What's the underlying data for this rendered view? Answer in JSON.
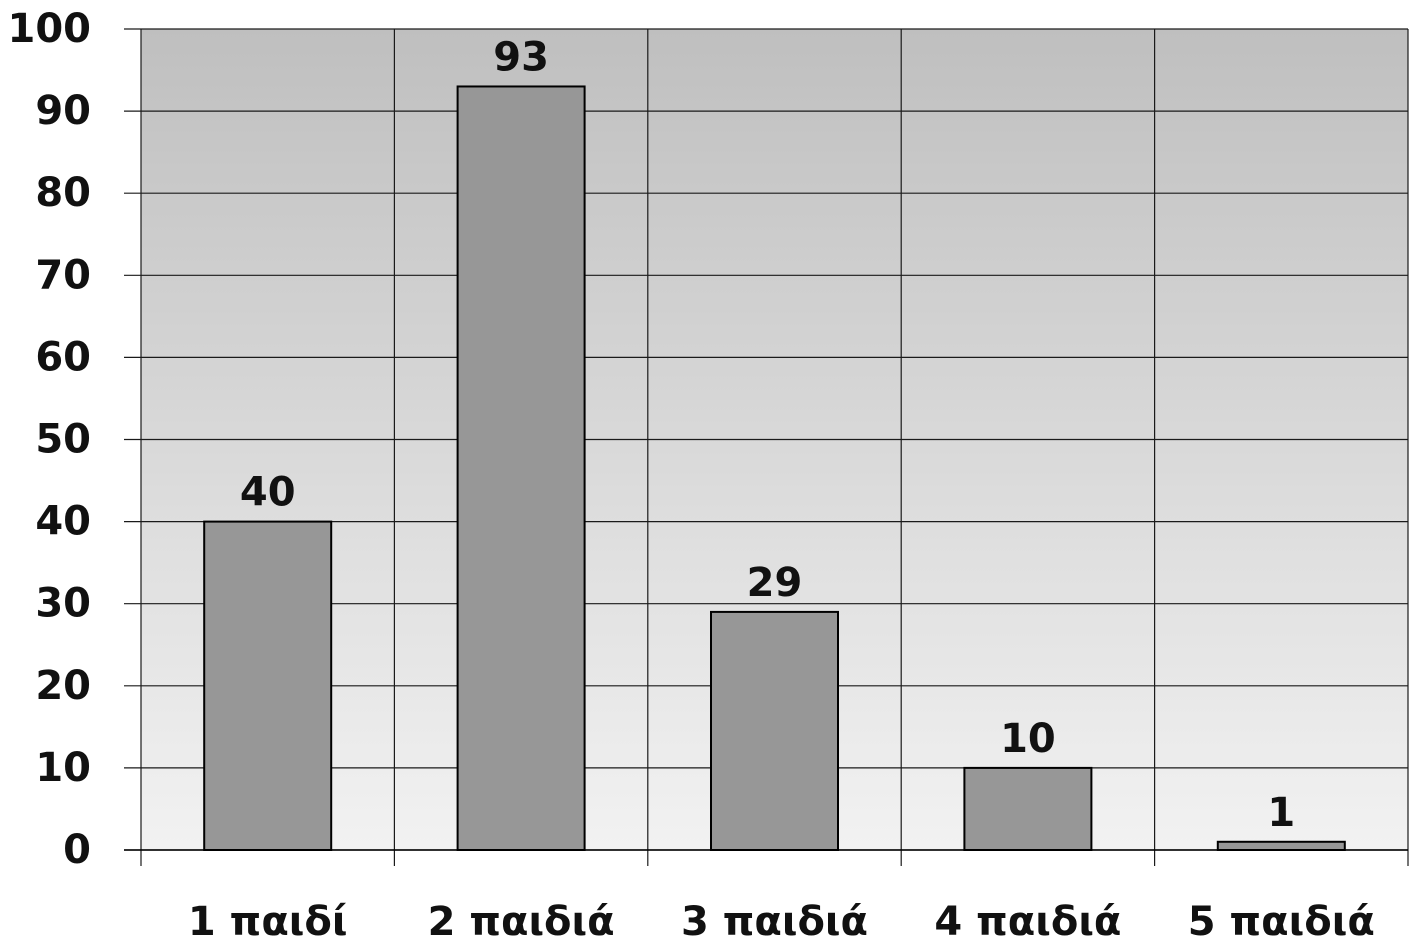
{
  "chart_data": {
    "type": "bar",
    "categories": [
      "1 παιδί",
      "2 παιδιά",
      "3 παιδιά",
      "4 παιδιά",
      "5 παιδιά"
    ],
    "values": [
      40,
      93,
      29,
      10,
      1
    ],
    "title": "",
    "xlabel": "",
    "ylabel": "",
    "ylim": [
      0,
      100
    ],
    "yticks": [
      0,
      10,
      20,
      30,
      40,
      50,
      60,
      70,
      80,
      90,
      100
    ],
    "grid": true,
    "data_labels": true,
    "legend": "none",
    "colors": {
      "bar_fill": "#979797",
      "bar_stroke": "#000000",
      "plot_background_top": "#bfbfbf",
      "plot_background_bottom": "#f2f2f2",
      "gridline": "#1a1a1a"
    }
  }
}
